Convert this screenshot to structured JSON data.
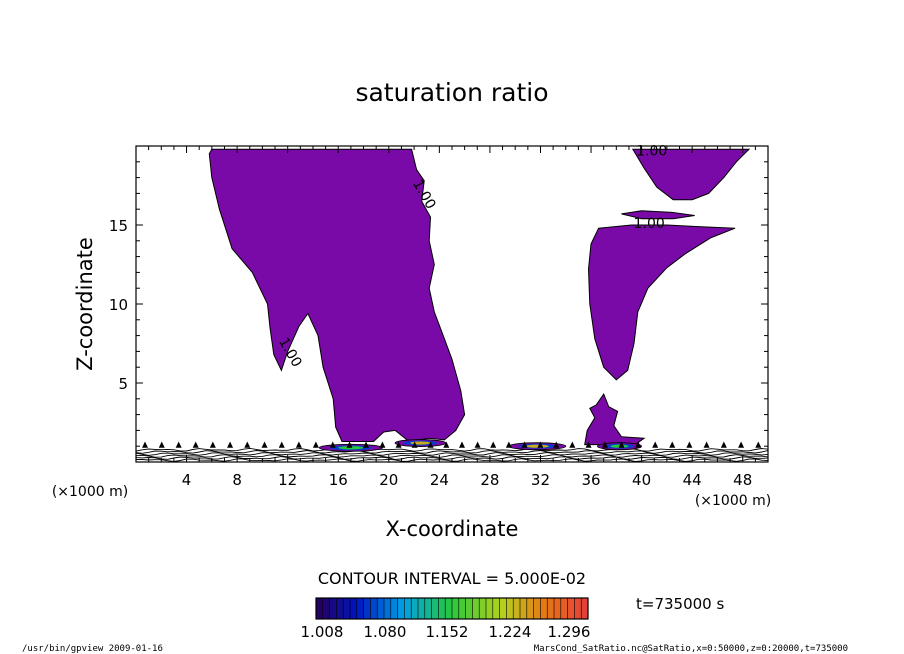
{
  "chart_data": {
    "type": "contour",
    "title": "saturation ratio",
    "xlabel": "X-coordinate",
    "ylabel": "Z-coordinate",
    "x_unit_label": "(×1000 m)",
    "x_unit_label_right": "(×1000 m)",
    "xlim": [
      0,
      50
    ],
    "ylim": [
      0,
      20
    ],
    "xticks": [
      4,
      8,
      12,
      16,
      20,
      24,
      28,
      32,
      36,
      40,
      44,
      48
    ],
    "yticks": [
      5,
      10,
      15
    ],
    "contour_interval_text": "CONTOUR INTERVAL = 5.000E-02",
    "time_text": "t=735000 s",
    "colorbar_ticks": [
      "1.008",
      "1.080",
      "1.152",
      "1.224",
      "1.296"
    ],
    "colorbar_range": [
      1.008,
      1.296
    ],
    "contour_labels": [
      {
        "text": "1.00",
        "x": 22.5,
        "z": 16.8,
        "angle": 60
      },
      {
        "text": "1.00",
        "x": 11.9,
        "z": 6.8,
        "angle": 60
      },
      {
        "text": "1.00",
        "x": 40.8,
        "z": 19.4,
        "angle": 0
      },
      {
        "text": "1.00",
        "x": 40.6,
        "z": 14.8,
        "angle": 0
      }
    ],
    "regions": [
      {
        "name": "main-plume",
        "value": 1.008,
        "outline": [
          [
            6,
            19.8
          ],
          [
            21.8,
            19.8
          ],
          [
            22.2,
            18.5
          ],
          [
            22.8,
            17.8
          ],
          [
            22.6,
            16.5
          ],
          [
            23.3,
            15.5
          ],
          [
            23.2,
            14
          ],
          [
            23.6,
            12.5
          ],
          [
            23.2,
            11
          ],
          [
            23.6,
            9.5
          ],
          [
            24.3,
            8
          ],
          [
            25.0,
            6.5
          ],
          [
            25.7,
            4.5
          ],
          [
            26.0,
            3
          ],
          [
            25.3,
            2.0
          ],
          [
            24.4,
            1.4
          ],
          [
            23.2,
            1.5
          ],
          [
            21.6,
            1.3
          ],
          [
            20.5,
            2.0
          ],
          [
            19.6,
            1.9
          ],
          [
            18.8,
            1.3
          ],
          [
            16.3,
            1.3
          ],
          [
            15.8,
            2.2
          ],
          [
            15.6,
            4
          ],
          [
            14.8,
            6
          ],
          [
            14.4,
            8
          ],
          [
            13.6,
            9.4
          ],
          [
            12.9,
            8.6
          ],
          [
            12.0,
            7
          ],
          [
            11.5,
            5.8
          ],
          [
            10.9,
            6.8
          ],
          [
            10.6,
            8.5
          ],
          [
            10.4,
            10
          ],
          [
            9.2,
            12
          ],
          [
            7.6,
            13.5
          ],
          [
            6.6,
            16
          ],
          [
            6.0,
            18
          ],
          [
            5.8,
            19.5
          ]
        ]
      },
      {
        "name": "top-right-bowl",
        "value": 1.008,
        "outline": [
          [
            39.3,
            19.8
          ],
          [
            48.5,
            19.8
          ],
          [
            47.5,
            19
          ],
          [
            46.5,
            18
          ],
          [
            45.3,
            17
          ],
          [
            44.0,
            16.6
          ],
          [
            42.5,
            16.6
          ],
          [
            41.2,
            17.4
          ],
          [
            40.2,
            18.6
          ]
        ]
      },
      {
        "name": "thin-band",
        "value": 1.008,
        "outline": [
          [
            38.4,
            15.7
          ],
          [
            40.0,
            15.9
          ],
          [
            42.4,
            15.8
          ],
          [
            44.2,
            15.6
          ],
          [
            42.5,
            15.4
          ],
          [
            40.0,
            15.4
          ]
        ]
      },
      {
        "name": "right-cone",
        "value": 1.008,
        "outline": [
          [
            36.6,
            14.8
          ],
          [
            39.2,
            15.0
          ],
          [
            42.0,
            15.0
          ],
          [
            44.5,
            14.9
          ],
          [
            47.4,
            14.8
          ],
          [
            45.5,
            14.2
          ],
          [
            43.5,
            13.2
          ],
          [
            42.0,
            12.3
          ],
          [
            40.5,
            11.0
          ],
          [
            39.7,
            9.5
          ],
          [
            39.4,
            7.5
          ],
          [
            38.9,
            5.8
          ],
          [
            38.0,
            5.2
          ],
          [
            37.0,
            6
          ],
          [
            36.3,
            7.8
          ],
          [
            35.9,
            10
          ],
          [
            35.8,
            12.2
          ],
          [
            36.0,
            13.8
          ]
        ]
      },
      {
        "name": "small-blob",
        "value": 1.008,
        "outline": [
          [
            35.5,
            1.1
          ],
          [
            39.5,
            1.1
          ],
          [
            40.2,
            1.5
          ],
          [
            38.4,
            1.6
          ],
          [
            37.8,
            2.3
          ],
          [
            38.1,
            3.2
          ],
          [
            37.4,
            3.5
          ],
          [
            37.0,
            4.3
          ],
          [
            36.4,
            3.6
          ],
          [
            35.9,
            3.4
          ],
          [
            36.3,
            2.8
          ],
          [
            35.7,
            2.0
          ]
        ]
      }
    ],
    "surface_features": [
      {
        "x0": 14.5,
        "x1": 19.5,
        "z": 0.9,
        "peak": 1.152
      },
      {
        "x0": 20.5,
        "x1": 24.5,
        "z": 1.2,
        "peak": 1.224
      },
      {
        "x0": 29.5,
        "x1": 34.0,
        "z": 1.0,
        "peak": 1.224
      },
      {
        "x0": 36.5,
        "x1": 40.0,
        "z": 1.0,
        "peak": 1.152
      }
    ]
  },
  "footer": {
    "left": "/usr/bin/gpview   2009-01-16",
    "right": "MarsCond_SatRatio.nc@SatRatio,x=0:50000,z=0:20000,t=735000"
  }
}
